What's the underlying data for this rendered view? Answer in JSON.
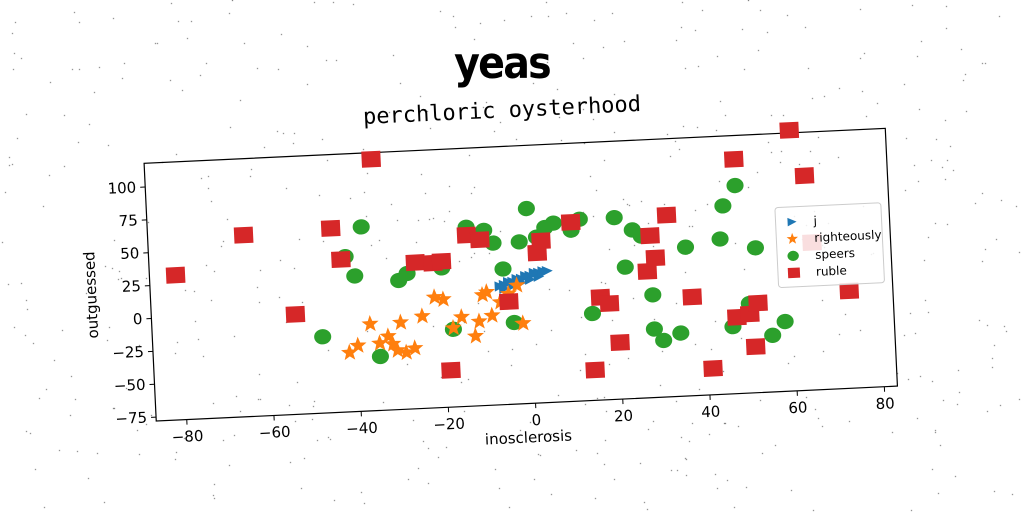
{
  "suptitle": "yeas",
  "chart_data": {
    "type": "scatter",
    "title": "perchloric oysterhood",
    "xlabel": "inosclerosis",
    "ylabel": "outguessed",
    "xlim": [
      -87,
      83
    ],
    "ylim": [
      -78,
      118
    ],
    "xticks": [
      -80,
      -60,
      -40,
      -20,
      0,
      20,
      40,
      60,
      80
    ],
    "yticks": [
      -75,
      -50,
      -25,
      0,
      25,
      50,
      75,
      100
    ],
    "legend_position": "center-right",
    "grid": false,
    "series": [
      {
        "name": "j",
        "marker": "triangle-right",
        "color": "#1f77b4",
        "x": [
          -7,
          -6,
          -5,
          -4,
          -3,
          -2,
          -1,
          0,
          1,
          2,
          3,
          4,
          -6,
          -4,
          -2,
          0,
          2,
          -5,
          -3,
          -1,
          1,
          3
        ],
        "y": [
          12,
          13,
          14,
          15,
          16,
          17,
          18,
          19,
          20,
          21,
          22,
          22,
          10,
          12,
          14,
          16,
          18,
          15,
          17,
          19,
          21,
          21
        ]
      },
      {
        "name": "righteously",
        "marker": "star",
        "color": "#ff7f0e",
        "x": [
          -42,
          -40,
          -37,
          -35,
          -33,
          -32,
          -31,
          -30,
          -29,
          -27,
          -25,
          -22,
          -20,
          -18,
          -16,
          -13,
          -12,
          -11,
          -10,
          -9,
          -7,
          -5,
          -3,
          -2
        ],
        "y": [
          -33,
          -28,
          -12,
          -27,
          -22,
          -28,
          -33,
          -12,
          -35,
          -32,
          -8,
          6,
          4,
          -18,
          -10,
          -25,
          -14,
          6,
          8,
          -10,
          0,
          6,
          12,
          -17
        ]
      },
      {
        "name": "speers",
        "marker": "circle",
        "color": "#2ca02c",
        "x": [
          -48,
          -42,
          -40,
          -38,
          -35,
          -30,
          -28,
          -20,
          -18,
          -14,
          -10,
          -8,
          -6,
          -4,
          -2,
          0,
          2,
          4,
          6,
          10,
          12,
          20,
          22,
          24,
          26,
          28,
          30,
          34,
          36,
          44,
          45,
          46,
          48,
          52,
          55,
          58,
          14,
          28,
          50
        ],
        "y": [
          -20,
          40,
          25,
          62,
          -37,
          20,
          25,
          28,
          -19,
          58,
          55,
          45,
          25,
          -16,
          45,
          70,
          48,
          55,
          58,
          52,
          60,
          60,
          22,
          50,
          45,
          -26,
          -35,
          -30,
          35,
          40,
          65,
          -27,
          80,
          32,
          -35,
          -25,
          -12,
          0,
          -10
        ]
      },
      {
        "name": "ruble",
        "marker": "square",
        "color": "#d62728",
        "x": [
          -81,
          -65,
          -54,
          -45,
          -43,
          -35,
          -26,
          -22,
          -20,
          -19,
          -14,
          -11,
          -5,
          2,
          3,
          10,
          14,
          16,
          18,
          20,
          27,
          28,
          29,
          32,
          37,
          41,
          47,
          48,
          50,
          51,
          52,
          61,
          64,
          65,
          73
        ],
        "y": [
          32,
          60,
          -2,
          62,
          38,
          113,
          33,
          32,
          33,
          -50,
          52,
          48,
          0,
          36,
          45,
          58,
          -55,
          0,
          -5,
          -35,
          18,
          45,
          28,
          60,
          -3,
          -58,
          -20,
          100,
          -18,
          -43,
          -10,
          120,
          85,
          34,
          -4
        ]
      }
    ]
  }
}
